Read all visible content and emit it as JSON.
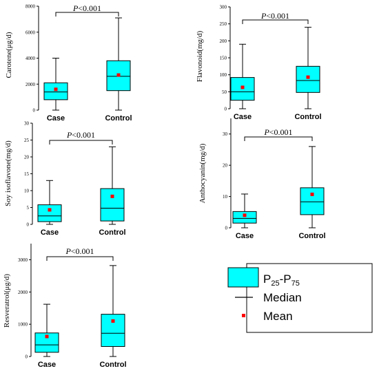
{
  "colors": {
    "box_fill": "#00FFFF",
    "mean_marker": "#FF0000",
    "line": "#000000"
  },
  "significance": {
    "p_label": "P",
    "p_value": "<0.001"
  },
  "legend": {
    "box": {
      "main": "P",
      "sub1": "25",
      "dash": "-P",
      "sub2": "75"
    },
    "median": "Median",
    "mean": "Mean"
  },
  "chart_data": [
    {
      "type": "box",
      "ylabel": "Carotene(μg/d)",
      "categories": [
        "Case",
        "Control"
      ],
      "ylim": [
        0,
        8000
      ],
      "yticks": [
        "0",
        "2000",
        "4000",
        "6000",
        "8000"
      ],
      "boxes": [
        {
          "min": 0,
          "q1": 800,
          "median": 1400,
          "q3": 2100,
          "max": 4000,
          "mean": 1600
        },
        {
          "min": 0,
          "q1": 1500,
          "median": 2600,
          "q3": 3800,
          "max": 7100,
          "mean": 2700
        }
      ]
    },
    {
      "type": "box",
      "ylabel": "Flavonoid(mg/d)",
      "categories": [
        "Case",
        "Control"
      ],
      "ylim": [
        0,
        300
      ],
      "yticks": [
        "0",
        "50",
        "100",
        "150",
        "200",
        "250",
        "300"
      ],
      "boxes": [
        {
          "min": 0,
          "q1": 25,
          "median": 50,
          "q3": 92,
          "max": 190,
          "mean": 63
        },
        {
          "min": 0,
          "q1": 48,
          "median": 83,
          "q3": 125,
          "max": 240,
          "mean": 93
        }
      ]
    },
    {
      "type": "box",
      "ylabel": "Soy isoflavone(mg/d)",
      "categories": [
        "Case",
        "Control"
      ],
      "ylim": [
        0,
        30
      ],
      "yticks": [
        "0",
        "5",
        "10",
        "15",
        "20",
        "25",
        "30"
      ],
      "boxes": [
        {
          "min": 0,
          "q1": 0.8,
          "median": 2.5,
          "q3": 5.8,
          "max": 13,
          "mean": 4.3
        },
        {
          "min": 0,
          "q1": 1.0,
          "median": 4.8,
          "q3": 10.6,
          "max": 23,
          "mean": 8.3
        }
      ]
    },
    {
      "type": "box",
      "ylabel": "Anthocyanin(mg/d)",
      "categories": [
        "Case",
        "Control"
      ],
      "ylim": [
        0,
        35
      ],
      "yticks": [
        "0",
        "10",
        "20",
        "30"
      ],
      "boxes": [
        {
          "min": 0,
          "q1": 1.5,
          "median": 3.0,
          "q3": 5.2,
          "max": 10.8,
          "mean": 4.0
        },
        {
          "min": 0,
          "q1": 4.2,
          "median": 8.3,
          "q3": 12.8,
          "max": 26,
          "mean": 10.7
        }
      ]
    },
    {
      "type": "box",
      "ylabel": "Resveratrol(μg/d)",
      "categories": [
        "Case",
        "Control"
      ],
      "ylim": [
        0,
        3500
      ],
      "yticks": [
        "0",
        "1000",
        "2000",
        "3000"
      ],
      "boxes": [
        {
          "min": 0,
          "q1": 130,
          "median": 360,
          "q3": 730,
          "max": 1620,
          "mean": 620
        },
        {
          "min": 0,
          "q1": 310,
          "median": 720,
          "q3": 1310,
          "max": 2820,
          "mean": 1100
        }
      ]
    }
  ]
}
